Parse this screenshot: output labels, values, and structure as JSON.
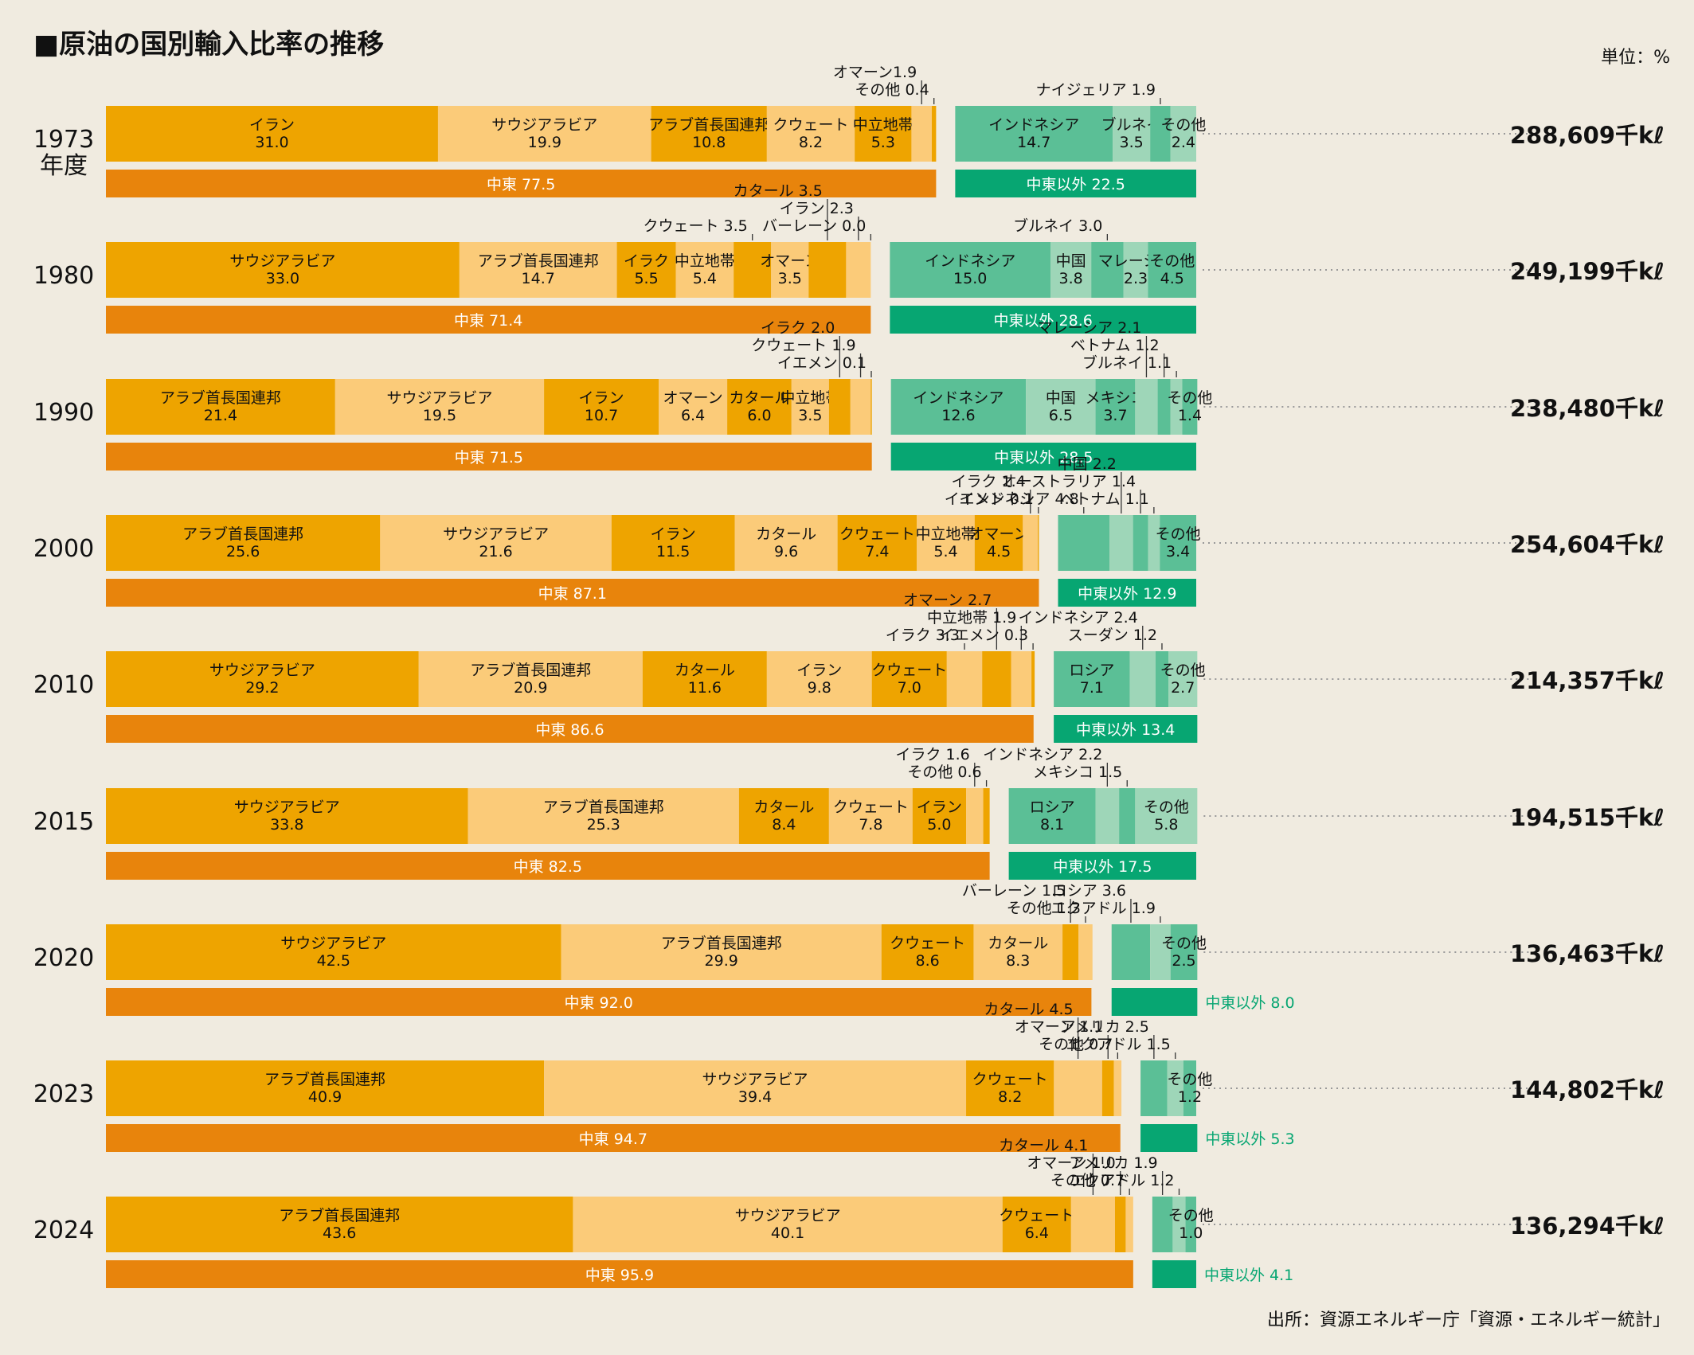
{
  "chart_data": {
    "type": "bar",
    "title": "■原油の国別輸入比率の推移",
    "unit_label": "単位：%",
    "source": "出所：資源エネルギー庁「資源・エネルギー統計」",
    "year_suffix": "年度",
    "colors": {
      "me_dark": "#eea400",
      "me_light": "#fbcb79",
      "me_total": "#e8840c",
      "nme_a": "#5bbf96",
      "nme_b": "#9ed6b8",
      "nme_total": "#07a672",
      "nme_total_text": "#07a672",
      "dotted": "#999999"
    },
    "rows": [
      {
        "year": "1973",
        "total": "288,609千kℓ",
        "middle_east": [
          {
            "name": "イラン",
            "value": 31.0,
            "label": "31.0"
          },
          {
            "name": "サウジアラビア",
            "value": 19.9,
            "label": "19.9"
          },
          {
            "name": "アラブ首長国連邦",
            "value": 10.8,
            "label": "10.8"
          },
          {
            "name": "クウェート",
            "value": 8.2,
            "label": "8.2"
          },
          {
            "name": "中立地帯",
            "value": 5.3,
            "label": "5.3"
          },
          {
            "name": "",
            "value": 1.9,
            "label": "",
            "callout": "オマーン1.9"
          },
          {
            "name": "",
            "value": 0.4,
            "label": "",
            "callout": "その他 0.4"
          }
        ],
        "non_middle_east": [
          {
            "name": "インドネシア",
            "value": 14.7,
            "label": "14.7"
          },
          {
            "name": "ブルネイ",
            "value": 3.5,
            "label": "3.5"
          },
          {
            "name": "",
            "value": 1.9,
            "label": "",
            "callout": "ナイジェリア 1.9"
          },
          {
            "name": "その他",
            "value": 2.4,
            "label": "2.4"
          }
        ],
        "me_total": {
          "name": "中東",
          "value": 77.5,
          "label": "中東 77.5"
        },
        "nme_total": {
          "name": "中東以外",
          "value": 22.5,
          "label": "中東以外 22.5"
        }
      },
      {
        "year": "1980",
        "total": "249,199千kℓ",
        "middle_east": [
          {
            "name": "サウジアラビア",
            "value": 33.0,
            "label": "33.0"
          },
          {
            "name": "アラブ首長国連邦",
            "value": 14.7,
            "label": "14.7"
          },
          {
            "name": "イラク",
            "value": 5.5,
            "label": "5.5"
          },
          {
            "name": "中立地帯",
            "value": 5.4,
            "label": "5.4"
          },
          {
            "name": "",
            "value": 3.5,
            "label": "",
            "callout": "クウェート 3.5"
          },
          {
            "name": "オマーン",
            "value": 3.5,
            "label": "3.5"
          },
          {
            "name": "",
            "value": 3.5,
            "label": "",
            "callout": "カタール 3.5"
          },
          {
            "name": "",
            "value": 2.3,
            "label": "",
            "callout": "イラン 2.3"
          },
          {
            "name": "",
            "value": 0.0,
            "label": "",
            "callout": "バーレーン 0.0"
          }
        ],
        "non_middle_east": [
          {
            "name": "インドネシア",
            "value": 15.0,
            "label": "15.0"
          },
          {
            "name": "中国",
            "value": 3.8,
            "label": "3.8"
          },
          {
            "name": "",
            "value": 3.0,
            "label": "",
            "callout": "ブルネイ 3.0"
          },
          {
            "name": "マレーシア",
            "value": 2.3,
            "label": "2.3"
          },
          {
            "name": "その他",
            "value": 4.5,
            "label": "4.5"
          }
        ],
        "me_total": {
          "name": "中東",
          "value": 71.4,
          "label": "中東 71.4"
        },
        "nme_total": {
          "name": "中東以外",
          "value": 28.6,
          "label": "中東以外 28.6"
        }
      },
      {
        "year": "1990",
        "total": "238,480千kℓ",
        "middle_east": [
          {
            "name": "アラブ首長国連邦",
            "value": 21.4,
            "label": "21.4"
          },
          {
            "name": "サウジアラビア",
            "value": 19.5,
            "label": "19.5"
          },
          {
            "name": "イラン",
            "value": 10.7,
            "label": "10.7"
          },
          {
            "name": "オマーン",
            "value": 6.4,
            "label": "6.4"
          },
          {
            "name": "カタール",
            "value": 6.0,
            "label": "6.0"
          },
          {
            "name": "中立地帯",
            "value": 3.5,
            "label": "3.5"
          },
          {
            "name": "",
            "value": 2.0,
            "label": "",
            "callout": "イラク 2.0"
          },
          {
            "name": "",
            "value": 1.9,
            "label": "",
            "callout": "クウェート 1.9"
          },
          {
            "name": "",
            "value": 0.1,
            "label": "",
            "callout": "イエメン 0.1"
          }
        ],
        "non_middle_east": [
          {
            "name": "インドネシア",
            "value": 12.6,
            "label": "12.6"
          },
          {
            "name": "中国",
            "value": 6.5,
            "label": "6.5"
          },
          {
            "name": "メキシコ",
            "value": 3.7,
            "label": "3.7"
          },
          {
            "name": "",
            "value": 2.1,
            "label": "",
            "callout": "マレーシア 2.1"
          },
          {
            "name": "",
            "value": 1.2,
            "label": "",
            "callout": "ベトナム 1.2"
          },
          {
            "name": "",
            "value": 1.1,
            "label": "",
            "callout": "ブルネイ 1.1"
          },
          {
            "name": "その他",
            "value": 1.4,
            "label": "1.4"
          }
        ],
        "me_total": {
          "name": "中東",
          "value": 71.5,
          "label": "中東 71.5"
        },
        "nme_total": {
          "name": "中東以外",
          "value": 28.5,
          "label": "中東以外 28.5"
        }
      },
      {
        "year": "2000",
        "total": "254,604千kℓ",
        "middle_east": [
          {
            "name": "アラブ首長国連邦",
            "value": 25.6,
            "label": "25.6"
          },
          {
            "name": "サウジアラビア",
            "value": 21.6,
            "label": "21.6"
          },
          {
            "name": "イラン",
            "value": 11.5,
            "label": "11.5"
          },
          {
            "name": "カタール",
            "value": 9.6,
            "label": "9.6"
          },
          {
            "name": "クウェート",
            "value": 7.4,
            "label": "7.4"
          },
          {
            "name": "中立地帯",
            "value": 5.4,
            "label": "5.4"
          },
          {
            "name": "オマーン",
            "value": 4.5,
            "label": "4.5"
          },
          {
            "name": "",
            "value": 1.4,
            "label": "",
            "callout": "イラク 1.4"
          },
          {
            "name": "",
            "value": 0.1,
            "label": "",
            "callout": "イエメン 0.1"
          }
        ],
        "non_middle_east": [
          {
            "name": "",
            "value": 4.8,
            "label": "",
            "callout": "インドネシア 4.8"
          },
          {
            "name": "",
            "value": 2.2,
            "label": "",
            "callout": "中国 2.2"
          },
          {
            "name": "",
            "value": 1.4,
            "label": "",
            "callout": "オーストラリア 1.4"
          },
          {
            "name": "",
            "value": 1.1,
            "label": "",
            "callout": "ベトナム 1.1"
          },
          {
            "name": "その他",
            "value": 3.4,
            "label": "3.4"
          }
        ],
        "me_total": {
          "name": "中東",
          "value": 87.1,
          "label": "中東 87.1"
        },
        "nme_total": {
          "name": "中東以外",
          "value": 12.9,
          "label": "中東以外 12.9"
        }
      },
      {
        "year": "2010",
        "total": "214,357千kℓ",
        "middle_east": [
          {
            "name": "サウジアラビア",
            "value": 29.2,
            "label": "29.2"
          },
          {
            "name": "アラブ首長国連邦",
            "value": 20.9,
            "label": "20.9"
          },
          {
            "name": "カタール",
            "value": 11.6,
            "label": "11.6"
          },
          {
            "name": "イラン",
            "value": 9.8,
            "label": "9.8"
          },
          {
            "name": "クウェート",
            "value": 7.0,
            "label": "7.0"
          },
          {
            "name": "",
            "value": 3.3,
            "label": "",
            "callout": "イラク 3.3"
          },
          {
            "name": "",
            "value": 2.7,
            "label": "",
            "callout": "オマーン 2.7"
          },
          {
            "name": "",
            "value": 1.9,
            "label": "",
            "callout": "中立地帯 1.9"
          },
          {
            "name": "",
            "value": 0.3,
            "label": "",
            "callout": "イエメン 0.3"
          }
        ],
        "non_middle_east": [
          {
            "name": "ロシア",
            "value": 7.1,
            "label": "7.1"
          },
          {
            "name": "",
            "value": 2.4,
            "label": "",
            "callout": "インドネシア 2.4"
          },
          {
            "name": "",
            "value": 1.2,
            "label": "",
            "callout": "スーダン 1.2"
          },
          {
            "name": "その他",
            "value": 2.7,
            "label": "2.7"
          }
        ],
        "me_total": {
          "name": "中東",
          "value": 86.6,
          "label": "中東 86.6"
        },
        "nme_total": {
          "name": "中東以外",
          "value": 13.4,
          "label": "中東以外 13.4"
        }
      },
      {
        "year": "2015",
        "total": "194,515千kℓ",
        "middle_east": [
          {
            "name": "サウジアラビア",
            "value": 33.8,
            "label": "33.8"
          },
          {
            "name": "アラブ首長国連邦",
            "value": 25.3,
            "label": "25.3"
          },
          {
            "name": "カタール",
            "value": 8.4,
            "label": "8.4"
          },
          {
            "name": "クウェート",
            "value": 7.8,
            "label": "7.8"
          },
          {
            "name": "イラン",
            "value": 5.0,
            "label": "5.0"
          },
          {
            "name": "",
            "value": 1.6,
            "label": "",
            "callout": "イラク 1.6"
          },
          {
            "name": "",
            "value": 0.6,
            "label": "",
            "callout": "その他 0.6"
          }
        ],
        "non_middle_east": [
          {
            "name": "ロシア",
            "value": 8.1,
            "label": "8.1"
          },
          {
            "name": "",
            "value": 2.2,
            "label": "",
            "callout": "インドネシア 2.2"
          },
          {
            "name": "",
            "value": 1.5,
            "label": "",
            "callout": "メキシコ 1.5"
          },
          {
            "name": "その他",
            "value": 5.8,
            "label": "5.8"
          }
        ],
        "me_total": {
          "name": "中東",
          "value": 82.5,
          "label": "中東 82.5"
        },
        "nme_total": {
          "name": "中東以外",
          "value": 17.5,
          "label": "中東以外 17.5"
        }
      },
      {
        "year": "2020",
        "total": "136,463千kℓ",
        "middle_east": [
          {
            "name": "サウジアラビア",
            "value": 42.5,
            "label": "42.5"
          },
          {
            "name": "アラブ首長国連邦",
            "value": 29.9,
            "label": "29.9"
          },
          {
            "name": "クウェート",
            "value": 8.6,
            "label": "8.6"
          },
          {
            "name": "カタール",
            "value": 8.3,
            "label": "8.3"
          },
          {
            "name": "",
            "value": 1.5,
            "label": "",
            "callout": "バーレーン 1.5"
          },
          {
            "name": "",
            "value": 1.3,
            "label": "",
            "callout": "その他 1.3"
          }
        ],
        "non_middle_east": [
          {
            "name": "",
            "value": 3.6,
            "label": "",
            "callout": "ロシア 3.6"
          },
          {
            "name": "",
            "value": 1.9,
            "label": "",
            "callout": "エクアドル 1.9"
          },
          {
            "name": "その他",
            "value": 2.5,
            "label": "2.5"
          }
        ],
        "me_total": {
          "name": "中東",
          "value": 92.0,
          "label": "中東 92.0"
        },
        "nme_total": {
          "name": "中東以外",
          "value": 8.0,
          "label": "中東以外 8.0"
        }
      },
      {
        "year": "2023",
        "total": "144,802千kℓ",
        "middle_east": [
          {
            "name": "アラブ首長国連邦",
            "value": 40.9,
            "label": "40.9"
          },
          {
            "name": "サウジアラビア",
            "value": 39.4,
            "label": "39.4"
          },
          {
            "name": "クウェート",
            "value": 8.2,
            "label": "8.2"
          },
          {
            "name": "",
            "value": 4.5,
            "label": "",
            "callout": "カタール 4.5"
          },
          {
            "name": "",
            "value": 1.1,
            "label": "",
            "callout": "オマーン 1.1"
          },
          {
            "name": "",
            "value": 0.7,
            "label": "",
            "callout": "その他 0.7"
          }
        ],
        "non_middle_east": [
          {
            "name": "",
            "value": 2.5,
            "label": "",
            "callout": "アメリカ 2.5"
          },
          {
            "name": "",
            "value": 1.5,
            "label": "",
            "callout": "エクアドル 1.5"
          },
          {
            "name": "その他",
            "value": 1.2,
            "label": "1.2"
          }
        ],
        "me_total": {
          "name": "中東",
          "value": 94.7,
          "label": "中東 94.7"
        },
        "nme_total": {
          "name": "中東以外",
          "value": 5.3,
          "label": "中東以外 5.3"
        }
      },
      {
        "year": "2024",
        "total": "136,294千kℓ",
        "middle_east": [
          {
            "name": "アラブ首長国連邦",
            "value": 43.6,
            "label": "43.6"
          },
          {
            "name": "サウジアラビア",
            "value": 40.1,
            "label": "40.1"
          },
          {
            "name": "クウェート",
            "value": 6.4,
            "label": "6.4"
          },
          {
            "name": "",
            "value": 4.1,
            "label": "",
            "callout": "カタール 4.1"
          },
          {
            "name": "",
            "value": 1.0,
            "label": "",
            "callout": "オマーン 1.0"
          },
          {
            "name": "",
            "value": 0.7,
            "label": "",
            "callout": "その他 0.7"
          }
        ],
        "non_middle_east": [
          {
            "name": "",
            "value": 1.9,
            "label": "",
            "callout": "アメリカ 1.9"
          },
          {
            "name": "",
            "value": 1.2,
            "label": "",
            "callout": "エクアドル 1.2"
          },
          {
            "name": "その他",
            "value": 1.0,
            "label": "1.0"
          }
        ],
        "me_total": {
          "name": "中東",
          "value": 95.9,
          "label": "中東 95.9"
        },
        "nme_total": {
          "name": "中東以外",
          "value": 4.1,
          "label": "中東以外 4.1"
        }
      }
    ]
  }
}
